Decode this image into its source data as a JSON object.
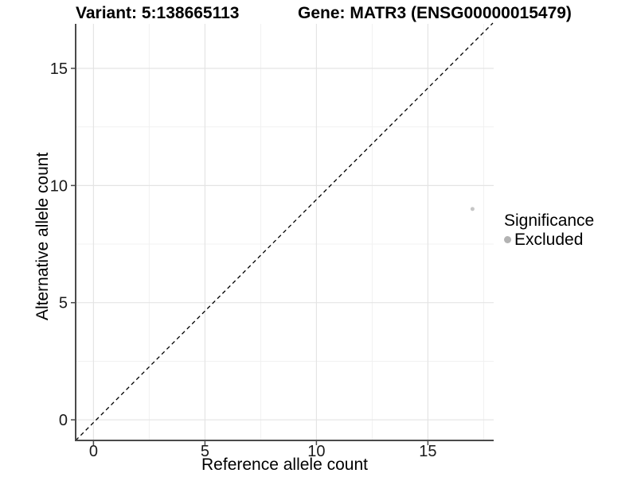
{
  "chart_data": {
    "type": "scatter",
    "title_left": "Variant: 5:138665113",
    "title_right": "Gene: MATR3 (ENSG00000015479)",
    "xlabel": "Reference allele count",
    "ylabel": "Alternative allele count",
    "x_ticks": [
      0,
      5,
      10,
      15
    ],
    "y_ticks": [
      0,
      5,
      10,
      15
    ],
    "xlim": [
      -0.8,
      17.95
    ],
    "ylim": [
      -0.88,
      16.9
    ],
    "grid": "major and minor, light gray, white panel background",
    "identity_line": {
      "kind": "y=x reference line",
      "linetype": "dashed",
      "color": "#000000"
    },
    "series": [
      {
        "name": "Excluded",
        "points": [
          {
            "x": 17,
            "y": 9
          }
        ],
        "color": "#c6c6c6",
        "point_radius": 2.5
      }
    ],
    "legend": {
      "title": "Significance",
      "position": "right",
      "items": [
        {
          "label": "Excluded",
          "color": "#b3b3b3"
        }
      ]
    },
    "colors": {
      "grid_major": "#e4e4e4",
      "grid_minor": "#f1f1f1",
      "axis_line": "#4a4a4a",
      "tick_label": "#1a1a1a",
      "background": "#ffffff"
    }
  }
}
